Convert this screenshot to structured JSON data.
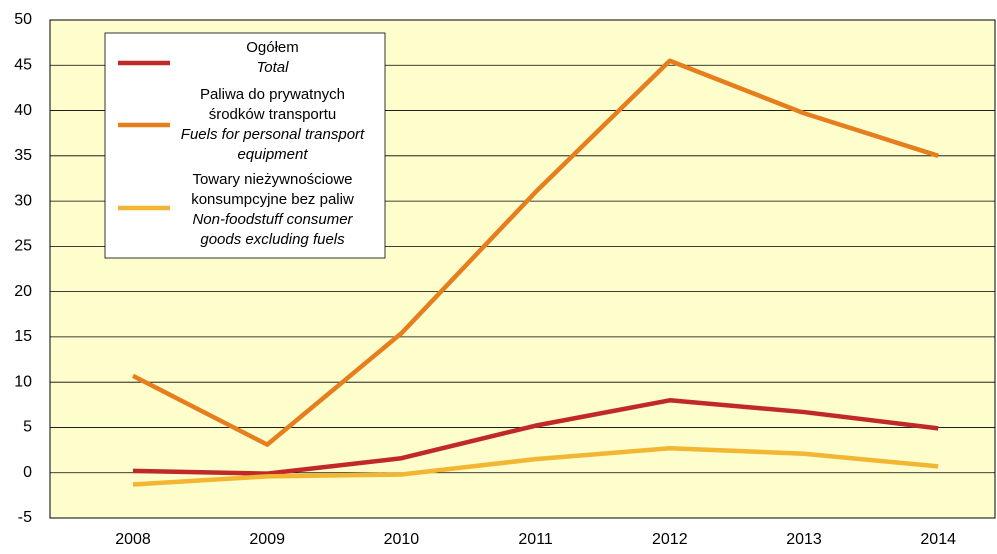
{
  "chart_data": {
    "type": "line",
    "categories": [
      "2008",
      "2009",
      "2010",
      "2011",
      "2012",
      "2013",
      "2014"
    ],
    "series": [
      {
        "name": "Ogółem",
        "name_en": "Total",
        "color": "#c0282a",
        "values": [
          0.2,
          -0.1,
          1.6,
          5.2,
          8.0,
          6.7,
          4.9
        ]
      },
      {
        "name": "Paliwa do prywatnych środków transportu",
        "name_en": "Fuels for personal transport equipment",
        "color": "#e67e1e",
        "values": [
          10.7,
          3.1,
          15.4,
          31.0,
          45.5,
          39.7,
          35.0
        ]
      },
      {
        "name": "Towary nieżywnościowe konsumpcyjne bez paliw",
        "name_en": "Non-foodstuff consumer goods excluding fuels",
        "color": "#f2b632",
        "values": [
          -1.3,
          -0.4,
          -0.2,
          1.5,
          2.7,
          2.1,
          0.7
        ]
      }
    ],
    "ylim": [
      -5,
      50
    ],
    "yticks": [
      -5,
      0,
      5,
      10,
      15,
      20,
      25,
      30,
      35,
      40,
      45,
      50
    ],
    "grid": true,
    "legend": "upper left"
  }
}
